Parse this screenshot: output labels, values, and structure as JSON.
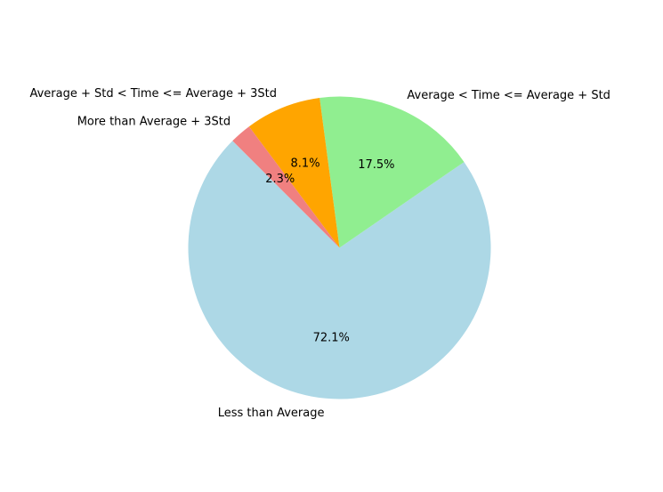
{
  "chart_data": {
    "type": "pie",
    "title": "",
    "start_angle_deg": 135,
    "direction": "counterclockwise",
    "slices": [
      {
        "label": "Less than Average",
        "value": 72.1,
        "pct_text": "72.1%",
        "color": "#add8e6"
      },
      {
        "label": "Average < Time <= Average + Std",
        "value": 17.5,
        "pct_text": "17.5%",
        "color": "#90ee90"
      },
      {
        "label": "Average + Std < Time <= Average + 3Std",
        "value": 8.1,
        "pct_text": "8.1%",
        "color": "#ffa500"
      },
      {
        "label": "More than Average + 3Std",
        "value": 2.3,
        "pct_text": "2.3%",
        "color": "#f08080"
      }
    ]
  }
}
